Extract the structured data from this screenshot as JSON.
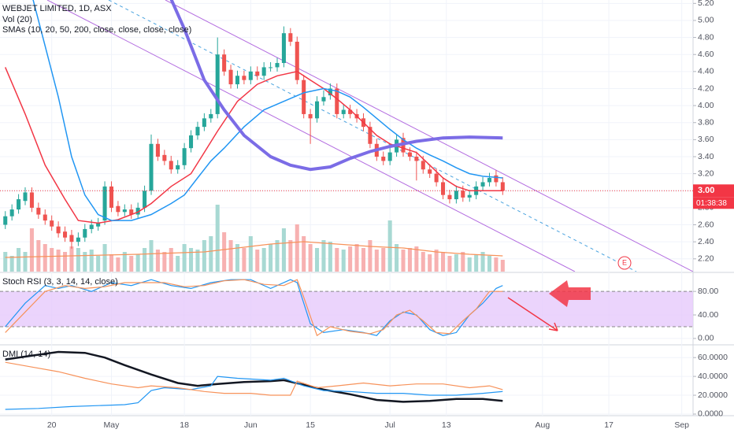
{
  "chart_data": [
    {
      "type": "candlestick",
      "title": "WEBJET LIMITED, 1D, ASX",
      "volume_title": "Vol (20)",
      "sma_title": "SMAs (10, 20, 50, 200, close, close, close, close)",
      "xlim": [
        -0.8,
        103.7
      ],
      "xticks": [
        {
          "value": 7,
          "label": "20"
        },
        {
          "value": 16,
          "label": "May"
        },
        {
          "value": 27,
          "label": "18"
        },
        {
          "value": 37,
          "label": "Jun"
        },
        {
          "value": 46,
          "label": "15"
        },
        {
          "value": 58,
          "label": "Jul"
        },
        {
          "value": 66.5,
          "label": "13"
        },
        {
          "value": 81,
          "label": "Aug"
        },
        {
          "value": 91,
          "label": "17"
        },
        {
          "value": 102,
          "label": "Sep"
        }
      ],
      "ylim": [
        2.05,
        5.24
      ],
      "yticks": [
        {
          "value": 2.2,
          "label": "2.20"
        },
        {
          "value": 2.4,
          "label": "2.40"
        },
        {
          "value": 2.6,
          "label": "2.60"
        },
        {
          "value": 2.8,
          "label": "2.80"
        },
        {
          "value": 3.0,
          "label": "3.00"
        },
        {
          "value": 3.2,
          "label": "3.20"
        },
        {
          "value": 3.4,
          "label": "3.40"
        },
        {
          "value": 3.6,
          "label": "3.60"
        },
        {
          "value": 3.8,
          "label": "3.80"
        },
        {
          "value": 4.0,
          "label": "4.00"
        },
        {
          "value": 4.2,
          "label": "4.20"
        },
        {
          "value": 4.4,
          "label": "4.40"
        },
        {
          "value": 4.6,
          "label": "4.60"
        },
        {
          "value": 4.8,
          "label": "4.80"
        },
        {
          "value": 5.0,
          "label": "5.00"
        },
        {
          "value": 5.2,
          "label": "5.20"
        }
      ],
      "up_color": "#26a69a",
      "down_color": "#ef5350",
      "open": [
        2.6,
        2.7,
        2.78,
        2.88,
        2.98,
        2.8,
        2.72,
        2.65,
        2.58,
        2.52,
        2.48,
        2.4,
        2.45,
        2.55,
        2.58,
        2.65,
        3.05,
        2.82,
        2.75,
        2.78,
        2.72,
        2.8,
        3.0,
        3.55,
        3.42,
        3.35,
        3.25,
        3.3,
        3.5,
        3.65,
        3.75,
        3.85,
        3.9,
        4.6,
        4.42,
        4.25,
        4.35,
        4.3,
        4.4,
        4.35,
        4.45,
        4.45,
        4.5,
        4.85,
        4.75,
        4.3,
        3.9,
        3.85,
        4.05,
        4.12,
        4.2,
        3.9,
        3.95,
        3.9,
        3.85,
        3.75,
        3.55,
        3.4,
        3.35,
        3.45,
        3.62,
        3.45,
        3.4,
        3.35,
        3.25,
        3.2,
        3.1,
        2.95,
        2.9,
        3.0,
        2.92,
        2.95,
        3.05,
        3.1,
        3.18,
        3.1
      ],
      "high": [
        2.76,
        2.84,
        2.96,
        3.04,
        3.04,
        2.86,
        2.78,
        2.71,
        2.64,
        2.58,
        2.54,
        2.51,
        2.61,
        2.66,
        2.68,
        3.11,
        3.11,
        2.88,
        2.84,
        2.84,
        2.86,
        3.06,
        3.66,
        3.61,
        3.48,
        3.41,
        3.36,
        3.56,
        3.71,
        3.81,
        3.91,
        3.96,
        4.8,
        4.66,
        4.48,
        4.41,
        4.41,
        4.46,
        4.46,
        4.51,
        4.51,
        4.56,
        4.93,
        4.91,
        4.81,
        4.36,
        3.96,
        4.11,
        4.18,
        4.26,
        4.26,
        4.01,
        4.01,
        3.96,
        3.91,
        3.81,
        3.61,
        3.46,
        3.51,
        3.66,
        3.68,
        3.51,
        3.46,
        3.41,
        3.31,
        3.26,
        3.16,
        3.01,
        3.06,
        3.06,
        3.01,
        3.11,
        3.16,
        3.21,
        3.24,
        3.16
      ],
      "low": [
        2.55,
        2.65,
        2.73,
        2.83,
        2.75,
        2.67,
        2.6,
        2.53,
        2.45,
        2.4,
        2.32,
        2.35,
        2.4,
        2.5,
        2.53,
        2.6,
        2.75,
        2.7,
        2.7,
        2.67,
        2.67,
        2.75,
        2.95,
        3.35,
        3.3,
        3.2,
        3.2,
        3.25,
        3.45,
        3.6,
        3.7,
        3.8,
        3.85,
        4.35,
        4.2,
        4.2,
        4.25,
        4.25,
        4.3,
        4.3,
        4.4,
        4.4,
        4.45,
        4.7,
        4.25,
        3.85,
        3.55,
        3.8,
        4.0,
        4.07,
        3.85,
        3.85,
        3.85,
        3.8,
        3.7,
        3.5,
        3.35,
        3.3,
        3.3,
        3.4,
        3.4,
        3.35,
        3.12,
        3.2,
        3.15,
        3.05,
        2.9,
        2.85,
        2.85,
        2.87,
        2.87,
        2.9,
        3.0,
        3.05,
        3.05,
        2.95
      ],
      "close": [
        2.7,
        2.78,
        2.9,
        2.98,
        2.8,
        2.72,
        2.65,
        2.58,
        2.5,
        2.45,
        2.4,
        2.45,
        2.55,
        2.6,
        2.62,
        3.05,
        2.8,
        2.75,
        2.78,
        2.72,
        2.8,
        3.0,
        3.55,
        3.4,
        3.35,
        3.25,
        3.3,
        3.5,
        3.65,
        3.75,
        3.85,
        3.9,
        4.6,
        4.4,
        4.25,
        4.35,
        4.3,
        4.4,
        4.35,
        4.45,
        4.45,
        4.5,
        4.85,
        4.75,
        4.3,
        3.9,
        3.85,
        4.05,
        4.1,
        4.2,
        3.9,
        3.95,
        3.9,
        3.85,
        3.75,
        3.55,
        3.4,
        3.35,
        3.45,
        3.6,
        3.45,
        3.4,
        3.35,
        3.25,
        3.2,
        3.1,
        2.95,
        2.9,
        3.0,
        2.92,
        2.95,
        3.05,
        3.1,
        3.15,
        3.1,
        3.0
      ],
      "volume": [
        25,
        20,
        30,
        25,
        55,
        40,
        35,
        30,
        28,
        25,
        32,
        30,
        25,
        28,
        20,
        35,
        22,
        18,
        25,
        20,
        22,
        30,
        40,
        28,
        25,
        30,
        20,
        35,
        30,
        28,
        40,
        45,
        85,
        50,
        40,
        35,
        30,
        45,
        28,
        30,
        35,
        40,
        55,
        40,
        60,
        45,
        35,
        30,
        40,
        38,
        30,
        28,
        32,
        35,
        30,
        40,
        28,
        30,
        65,
        35,
        28,
        30,
        32,
        25,
        22,
        28,
        25,
        20,
        22,
        25,
        18,
        22,
        25,
        20,
        18,
        15
      ],
      "vlim": [
        0,
        120
      ],
      "volume_up_color": "#a8d9d3",
      "volume_down_color": "#f7b1b1",
      "volume_ma": {
        "color": "#f7925a",
        "x": [
          0,
          10,
          20,
          30,
          40,
          45,
          50,
          55,
          60,
          65,
          70,
          75
        ],
        "values": [
          18,
          20,
          22,
          25,
          35,
          38,
          35,
          32,
          30,
          25,
          22,
          20
        ]
      },
      "series": [
        {
          "color": "#f23645",
          "x": [
            0,
            3,
            6,
            9,
            11,
            14,
            17,
            20,
            22,
            25,
            28,
            30,
            32,
            35,
            38,
            41,
            44,
            46,
            48,
            50,
            52,
            54,
            56,
            58,
            60,
            62,
            64,
            66,
            68,
            70,
            72,
            75
          ],
          "values": [
            4.45,
            3.9,
            3.3,
            2.9,
            2.65,
            2.62,
            2.66,
            2.75,
            2.85,
            3.05,
            3.2,
            3.45,
            3.7,
            4.05,
            4.25,
            4.35,
            4.4,
            4.3,
            4.2,
            4.08,
            3.95,
            3.8,
            3.65,
            3.55,
            3.5,
            3.45,
            3.3,
            3.15,
            3.05,
            3.0,
            3.0,
            3.0
          ],
          "width": 1.5
        },
        {
          "color": "#2196f3",
          "x": [
            4,
            6,
            8,
            10,
            12,
            14,
            16,
            19,
            22,
            25,
            27,
            29,
            31,
            33,
            36,
            39,
            42,
            45,
            48,
            50,
            52,
            54,
            56,
            58,
            60,
            62,
            64,
            66,
            68,
            70,
            72,
            75
          ],
          "values": [
            5.3,
            4.7,
            4.1,
            3.4,
            2.95,
            2.72,
            2.65,
            2.65,
            2.72,
            2.85,
            2.95,
            3.15,
            3.35,
            3.5,
            3.75,
            3.95,
            4.05,
            4.15,
            4.2,
            4.17,
            4.1,
            3.98,
            3.85,
            3.72,
            3.6,
            3.5,
            3.42,
            3.35,
            3.27,
            3.2,
            3.17,
            3.15
          ],
          "width": 1.5
        },
        {
          "color": "#7b6ce6",
          "x": [
            25,
            27,
            30,
            33,
            36,
            40,
            43,
            46,
            49,
            52,
            55,
            58,
            62,
            66,
            70,
            75
          ],
          "values": [
            5.25,
            4.9,
            4.3,
            3.95,
            3.65,
            3.4,
            3.3,
            3.25,
            3.28,
            3.38,
            3.46,
            3.52,
            3.58,
            3.62,
            3.63,
            3.62
          ],
          "width": 4
        }
      ],
      "last_price": {
        "value": 3.0,
        "label": "3.00"
      },
      "countdown": "01:38:38",
      "event_label": "E"
    },
    {
      "type": "line",
      "title": "Stoch RSI (3, 3, 14, 14, close)",
      "ylim": [
        -9.5,
        111
      ],
      "yticks": [
        {
          "value": 80,
          "label": "80.00"
        },
        {
          "value": 40,
          "label": "40.00"
        },
        {
          "value": 0,
          "label": "0.00"
        }
      ],
      "bands": [
        20,
        80
      ],
      "band_color": "#e6c9fb",
      "series": [
        {
          "color": "#2196f3",
          "x": [
            0,
            3,
            6,
            8,
            10,
            13,
            16,
            19,
            22,
            25,
            28,
            31,
            34,
            37,
            40,
            43,
            44,
            46,
            48,
            51,
            54,
            56,
            58,
            60,
            62,
            64,
            66,
            68,
            70,
            72,
            74,
            75
          ],
          "values": [
            20,
            60,
            90,
            85,
            90,
            80,
            95,
            90,
            100,
            90,
            85,
            95,
            100,
            100,
            85,
            100,
            95,
            25,
            10,
            15,
            10,
            5,
            30,
            45,
            40,
            15,
            5,
            10,
            40,
            60,
            85,
            90
          ]
        },
        {
          "color": "#f7925a",
          "x": [
            0,
            3,
            6,
            9,
            12,
            15,
            18,
            21,
            24,
            27,
            30,
            33,
            36,
            39,
            42,
            44,
            45,
            47,
            49,
            52,
            55,
            57,
            59,
            61,
            63,
            65,
            67,
            69,
            71,
            73,
            75
          ],
          "values": [
            10,
            45,
            80,
            90,
            85,
            88,
            95,
            95,
            95,
            88,
            90,
            98,
            100,
            92,
            90,
            100,
            70,
            5,
            20,
            12,
            8,
            15,
            40,
            48,
            30,
            10,
            8,
            30,
            50,
            80,
            80
          ]
        }
      ]
    },
    {
      "type": "line",
      "title": "DMI (14, 14)",
      "ylim": [
        -1.7,
        72.7
      ],
      "yticks": [
        {
          "value": 60,
          "label": "60.0000"
        },
        {
          "value": 40,
          "label": "40.0000"
        },
        {
          "value": 20,
          "label": "20.0000"
        },
        {
          "value": 0,
          "label": "0.0000"
        }
      ],
      "series": [
        {
          "color": "#131722",
          "width": 2.5,
          "x": [
            0,
            4,
            8,
            12,
            15,
            18,
            22,
            26,
            29,
            32,
            36,
            40,
            42,
            45,
            48,
            52,
            56,
            60,
            64,
            68,
            72,
            75
          ],
          "values": [
            58,
            62,
            66,
            65,
            60,
            52,
            42,
            33,
            30,
            32,
            34,
            35,
            36,
            31,
            26,
            21,
            15,
            13,
            14,
            16,
            16,
            14
          ]
        },
        {
          "color": "#2196f3",
          "x": [
            0,
            5,
            10,
            14,
            18,
            20,
            22,
            24,
            28,
            31,
            32,
            35,
            40,
            42,
            45,
            48,
            52,
            56,
            60,
            64,
            68,
            72,
            75
          ],
          "values": [
            5,
            6,
            8,
            9,
            10,
            12,
            25,
            28,
            26,
            30,
            40,
            38,
            36,
            38,
            30,
            25,
            24,
            22,
            22,
            20,
            20,
            22,
            24
          ]
        },
        {
          "color": "#f7925a",
          "x": [
            0,
            4,
            8,
            12,
            16,
            20,
            22,
            26,
            30,
            33,
            37,
            40,
            43,
            44,
            47,
            50,
            54,
            58,
            62,
            66,
            70,
            73,
            75
          ],
          "values": [
            55,
            50,
            45,
            38,
            32,
            28,
            30,
            28,
            24,
            22,
            22,
            20,
            20,
            35,
            28,
            30,
            33,
            30,
            32,
            32,
            28,
            30,
            26
          ]
        }
      ]
    }
  ]
}
